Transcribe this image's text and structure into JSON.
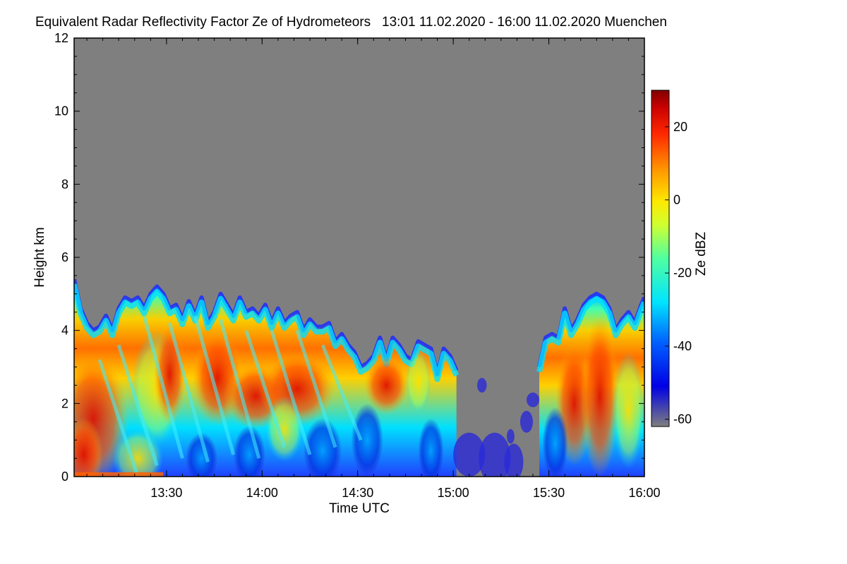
{
  "chart_data": {
    "type": "heatmap",
    "title": "Equivalent Radar Reflectivity Factor Ze of Hydrometeors   13:01 11.02.2020 - 16:00 11.02.2020 Muenchen",
    "xlabel": "Time UTC",
    "ylabel": "Height km",
    "colorbar_label": "Ze dBZ",
    "x_ticks": [
      "13:30",
      "14:00",
      "14:30",
      "15:00",
      "15:30",
      "16:00"
    ],
    "x_tick_minutes": [
      29,
      59,
      89,
      119,
      149,
      179
    ],
    "x_range_minutes": [
      0,
      179
    ],
    "y_ticks": [
      0,
      2,
      4,
      6,
      8,
      10,
      12
    ],
    "ylim": [
      0,
      12
    ],
    "colorbar_ticks": [
      20,
      0,
      -20,
      -40,
      -60
    ],
    "colorbar_range": [
      -62,
      30
    ],
    "missing_color": "#7f7f7f",
    "echo_tops_km": [
      [
        0,
        5.4
      ],
      [
        2,
        4.6
      ],
      [
        4,
        4.2
      ],
      [
        6,
        4.0
      ],
      [
        8,
        4.1
      ],
      [
        10,
        4.4
      ],
      [
        12,
        4.0
      ],
      [
        14,
        4.6
      ],
      [
        16,
        4.9
      ],
      [
        18,
        4.8
      ],
      [
        20,
        4.9
      ],
      [
        22,
        4.6
      ],
      [
        24,
        5.0
      ],
      [
        26,
        5.2
      ],
      [
        28,
        5.0
      ],
      [
        30,
        4.6
      ],
      [
        32,
        4.7
      ],
      [
        34,
        4.3
      ],
      [
        36,
        4.8
      ],
      [
        38,
        4.4
      ],
      [
        40,
        4.9
      ],
      [
        42,
        4.2
      ],
      [
        44,
        4.5
      ],
      [
        46,
        5.0
      ],
      [
        48,
        4.7
      ],
      [
        50,
        4.4
      ],
      [
        52,
        4.9
      ],
      [
        54,
        4.5
      ],
      [
        56,
        4.6
      ],
      [
        58,
        4.4
      ],
      [
        60,
        4.7
      ],
      [
        62,
        4.2
      ],
      [
        64,
        4.6
      ],
      [
        66,
        4.2
      ],
      [
        68,
        4.4
      ],
      [
        70,
        4.5
      ],
      [
        72,
        4.0
      ],
      [
        74,
        4.3
      ],
      [
        76,
        4.1
      ],
      [
        78,
        4.1
      ],
      [
        80,
        4.2
      ],
      [
        82,
        3.7
      ],
      [
        84,
        3.9
      ],
      [
        86,
        3.6
      ],
      [
        88,
        3.4
      ],
      [
        90,
        3.0
      ],
      [
        92,
        3.1
      ],
      [
        94,
        3.3
      ],
      [
        96,
        3.8
      ],
      [
        98,
        3.2
      ],
      [
        100,
        3.8
      ],
      [
        102,
        3.6
      ],
      [
        104,
        3.3
      ],
      [
        106,
        3.2
      ],
      [
        108,
        3.7
      ],
      [
        110,
        3.6
      ],
      [
        112,
        3.5
      ],
      [
        114,
        2.8
      ],
      [
        116,
        3.5
      ],
      [
        118,
        3.3
      ],
      [
        120,
        2.9
      ]
    ],
    "echo_region_2_tops_km": [
      [
        146,
        3.0
      ],
      [
        148,
        3.8
      ],
      [
        150,
        3.9
      ],
      [
        152,
        3.8
      ],
      [
        154,
        4.6
      ],
      [
        156,
        4.0
      ],
      [
        158,
        4.3
      ],
      [
        160,
        4.7
      ],
      [
        162,
        4.9
      ],
      [
        164,
        5.0
      ],
      [
        166,
        4.9
      ],
      [
        168,
        4.6
      ],
      [
        170,
        4.0
      ],
      [
        172,
        4.3
      ],
      [
        174,
        4.5
      ],
      [
        176,
        4.2
      ],
      [
        178,
        4.7
      ],
      [
        179,
        4.9
      ]
    ],
    "notes": "Reflectivity: high (red, ~15-25 dBZ) near the ground 13:01-13:25, bands 13:40-14:25 at 1.5-3 km, around 14:40 at ~2.5 km, and 15:35-15:55 from 0-4 km; cyan/blue edges near the echo tops; scattered weak (blue/grey, -40 to -60 dBZ) echoes between 14:55 and 15:30 below 1 km."
  }
}
